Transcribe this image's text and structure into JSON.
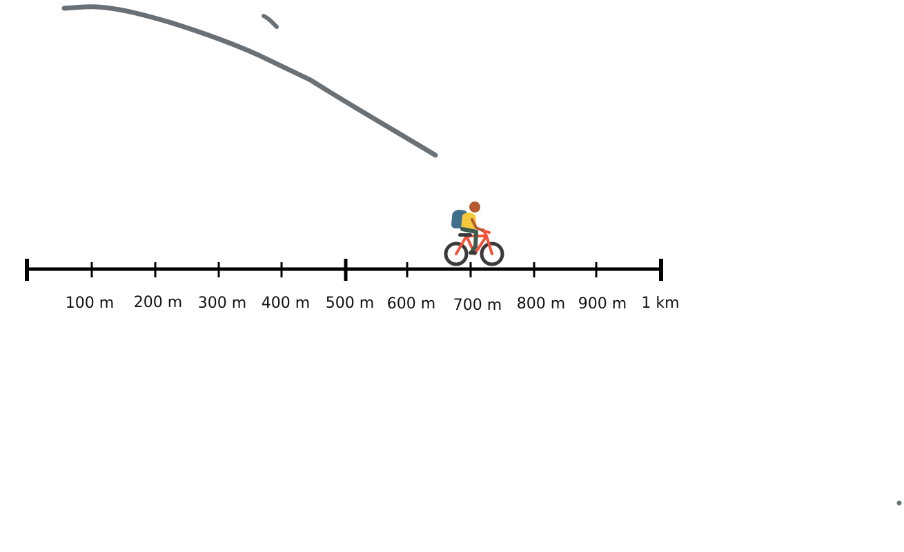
{
  "colors": {
    "background": "#ffffff",
    "scale": "#000000",
    "ink": "#6b7075",
    "bike_frame": "#f4533a",
    "bike_wheels": "#3a3a3a",
    "rider_skin": "#b55b2f",
    "rider_shirt": "#f4c83b",
    "rider_pants": "#3d5a4d",
    "backpack": "#3f6f8a"
  },
  "scale_bar": {
    "labels": [
      "100 m",
      "200 m",
      "300 m",
      "400 m",
      "500 m",
      "600 m",
      "700 m",
      "800 m",
      "900 m",
      "1 km"
    ],
    "cyclist_position_m": 690
  },
  "icons": [
    "cyclist-icon",
    "bicycle-icon"
  ]
}
